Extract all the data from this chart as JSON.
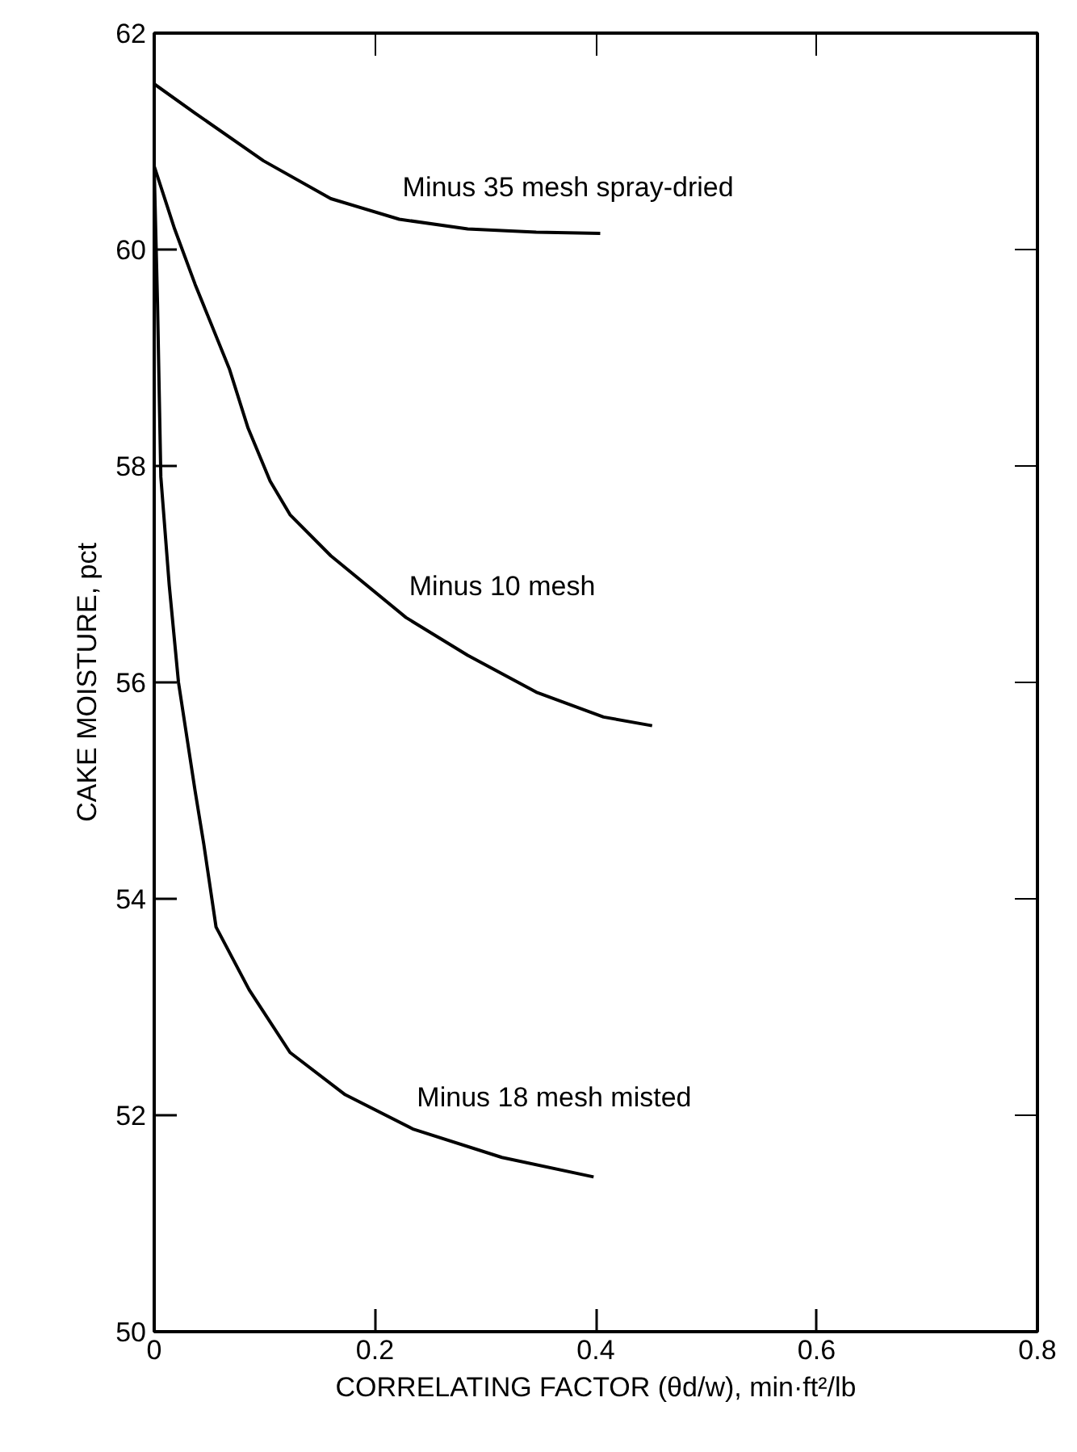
{
  "chart_data": {
    "type": "line",
    "xlabel": "CORRELATING FACTOR (θd/w), min·ft²/lb",
    "ylabel": "CAKE MOISTURE, pct",
    "xlim": [
      0,
      0.8
    ],
    "xticks": [
      0,
      0.2,
      0.4,
      0.6,
      0.8
    ],
    "ylim": [
      50,
      62
    ],
    "yticks": [
      50,
      52,
      54,
      56,
      58,
      60,
      62
    ],
    "line_style": "solid",
    "series": [
      {
        "name": "Minus 35 mesh spray-dried",
        "color": "#000000",
        "x": [
          0,
          0.037,
          0.099,
          0.16,
          0.222,
          0.284,
          0.346,
          0.404
        ],
        "values": [
          61.53,
          61.26,
          60.82,
          60.47,
          60.28,
          60.19,
          60.16,
          60.15
        ]
      },
      {
        "name": "Minus 10 mesh",
        "color": "#000000",
        "x": [
          0,
          0.0185,
          0.037,
          0.068,
          0.085,
          0.105,
          0.123,
          0.16,
          0.228,
          0.284,
          0.346,
          0.407,
          0.451
        ],
        "values": [
          60.77,
          60.19,
          59.68,
          58.9,
          58.35,
          57.86,
          57.55,
          57.17,
          56.6,
          56.25,
          55.91,
          55.68,
          55.6
        ]
      },
      {
        "name": "Minus 18 mesh misted",
        "color": "#000000",
        "x": [
          0,
          0.003,
          0.006,
          0.0136,
          0.022,
          0.037,
          0.045,
          0.056,
          0.086,
          0.123,
          0.173,
          0.235,
          0.315,
          0.398
        ],
        "values": [
          60.75,
          59.5,
          57.9,
          56.9,
          56.0,
          55.0,
          54.5,
          53.74,
          53.16,
          52.58,
          52.19,
          51.87,
          51.61,
          51.43
        ]
      }
    ]
  }
}
